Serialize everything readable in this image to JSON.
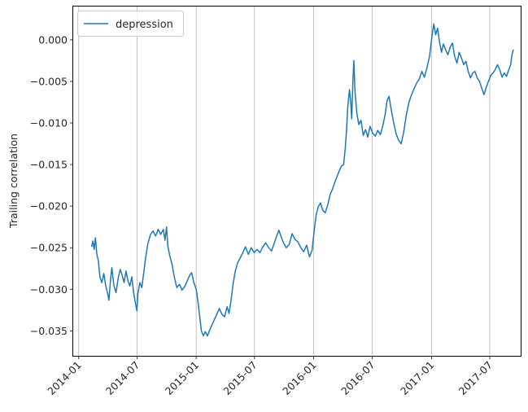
{
  "chart_data": {
    "type": "line",
    "title": "",
    "xlabel": "",
    "ylabel": "Trailing correlation",
    "x_type": "date",
    "xlim": [
      "2013-12-15",
      "2017-10-05"
    ],
    "ylim": [
      -0.038,
      0.004
    ],
    "x_ticks": [
      "2014-01-01",
      "2014-07-01",
      "2015-01-01",
      "2015-07-01",
      "2016-01-01",
      "2016-07-01",
      "2017-01-01",
      "2017-07-01"
    ],
    "x_tick_labels": [
      "2014-01",
      "2014-07",
      "2015-01",
      "2015-07",
      "2016-01",
      "2016-07",
      "2017-01",
      "2017-07"
    ],
    "y_ticks": [
      -0.035,
      -0.03,
      -0.025,
      -0.02,
      -0.015,
      -0.01,
      -0.005,
      0.0
    ],
    "y_tick_labels": [
      "−0.035",
      "−0.030",
      "−0.025",
      "−0.020",
      "−0.015",
      "−0.010",
      "−0.005",
      "0.000"
    ],
    "grid": {
      "x": true,
      "y": false
    },
    "legend_position": "top-left",
    "series": [
      {
        "name": "depression",
        "color": "#1f77b4",
        "points": [
          [
            "2014-02-10",
            -0.0249
          ],
          [
            "2014-02-14",
            -0.0242
          ],
          [
            "2014-02-18",
            -0.0252
          ],
          [
            "2014-02-22",
            -0.0238
          ],
          [
            "2014-02-26",
            -0.0257
          ],
          [
            "2014-03-03",
            -0.0266
          ],
          [
            "2014-03-08",
            -0.0285
          ],
          [
            "2014-03-14",
            -0.0292
          ],
          [
            "2014-03-20",
            -0.0281
          ],
          [
            "2014-03-26",
            -0.0296
          ],
          [
            "2014-04-01",
            -0.0305
          ],
          [
            "2014-04-05",
            -0.0313
          ],
          [
            "2014-04-10",
            -0.0288
          ],
          [
            "2014-04-14",
            -0.0274
          ],
          [
            "2014-04-20",
            -0.0295
          ],
          [
            "2014-04-27",
            -0.0304
          ],
          [
            "2014-05-04",
            -0.0286
          ],
          [
            "2014-05-10",
            -0.0276
          ],
          [
            "2014-05-16",
            -0.0283
          ],
          [
            "2014-05-22",
            -0.0292
          ],
          [
            "2014-05-28",
            -0.0278
          ],
          [
            "2014-06-03",
            -0.029
          ],
          [
            "2014-06-09",
            -0.0296
          ],
          [
            "2014-06-15",
            -0.0285
          ],
          [
            "2014-06-21",
            -0.0305
          ],
          [
            "2014-06-27",
            -0.0318
          ],
          [
            "2014-07-01",
            -0.0326
          ],
          [
            "2014-07-04",
            -0.0305
          ],
          [
            "2014-07-10",
            -0.0292
          ],
          [
            "2014-07-16",
            -0.0298
          ],
          [
            "2014-07-22",
            -0.028
          ],
          [
            "2014-07-28",
            -0.0262
          ],
          [
            "2014-08-04",
            -0.0245
          ],
          [
            "2014-08-12",
            -0.0234
          ],
          [
            "2014-08-20",
            -0.023
          ],
          [
            "2014-08-28",
            -0.0236
          ],
          [
            "2014-09-05",
            -0.0228
          ],
          [
            "2014-09-13",
            -0.0234
          ],
          [
            "2014-09-21",
            -0.0228
          ],
          [
            "2014-09-26",
            -0.0241
          ],
          [
            "2014-10-01",
            -0.0225
          ],
          [
            "2014-10-05",
            -0.0248
          ],
          [
            "2014-10-11",
            -0.026
          ],
          [
            "2014-10-18",
            -0.027
          ],
          [
            "2014-10-25",
            -0.0285
          ],
          [
            "2014-11-02",
            -0.0298
          ],
          [
            "2014-11-10",
            -0.0294
          ],
          [
            "2014-11-18",
            -0.0301
          ],
          [
            "2014-11-26",
            -0.0297
          ],
          [
            "2014-12-04",
            -0.029
          ],
          [
            "2014-12-12",
            -0.0283
          ],
          [
            "2014-12-18",
            -0.028
          ],
          [
            "2014-12-24",
            -0.0291
          ],
          [
            "2015-01-01",
            -0.03
          ],
          [
            "2015-01-07",
            -0.0316
          ],
          [
            "2015-01-12",
            -0.0333
          ],
          [
            "2015-01-17",
            -0.035
          ],
          [
            "2015-01-23",
            -0.0356
          ],
          [
            "2015-01-29",
            -0.0351
          ],
          [
            "2015-02-05",
            -0.0356
          ],
          [
            "2015-02-12",
            -0.0349
          ],
          [
            "2015-02-19",
            -0.0343
          ],
          [
            "2015-02-26",
            -0.0337
          ],
          [
            "2015-03-06",
            -0.033
          ],
          [
            "2015-03-14",
            -0.0323
          ],
          [
            "2015-03-22",
            -0.033
          ],
          [
            "2015-03-30",
            -0.0333
          ],
          [
            "2015-04-07",
            -0.0321
          ],
          [
            "2015-04-13",
            -0.0329
          ],
          [
            "2015-04-19",
            -0.0314
          ],
          [
            "2015-04-25",
            -0.0295
          ],
          [
            "2015-05-02",
            -0.0279
          ],
          [
            "2015-05-10",
            -0.0268
          ],
          [
            "2015-05-18",
            -0.0262
          ],
          [
            "2015-05-26",
            -0.0256
          ],
          [
            "2015-06-03",
            -0.0249
          ],
          [
            "2015-06-12",
            -0.0258
          ],
          [
            "2015-06-21",
            -0.025
          ],
          [
            "2015-06-30",
            -0.0256
          ],
          [
            "2015-07-09",
            -0.0252
          ],
          [
            "2015-07-18",
            -0.0256
          ],
          [
            "2015-07-27",
            -0.0249
          ],
          [
            "2015-08-05",
            -0.0244
          ],
          [
            "2015-08-14",
            -0.025
          ],
          [
            "2015-08-23",
            -0.0254
          ],
          [
            "2015-09-01",
            -0.0244
          ],
          [
            "2015-09-08",
            -0.0236
          ],
          [
            "2015-09-15",
            -0.0229
          ],
          [
            "2015-09-22",
            -0.0237
          ],
          [
            "2015-09-29",
            -0.0244
          ],
          [
            "2015-10-08",
            -0.025
          ],
          [
            "2015-10-17",
            -0.0246
          ],
          [
            "2015-10-26",
            -0.0233
          ],
          [
            "2015-11-04",
            -0.024
          ],
          [
            "2015-11-13",
            -0.0243
          ],
          [
            "2015-11-22",
            -0.025
          ],
          [
            "2015-12-01",
            -0.0255
          ],
          [
            "2015-12-10",
            -0.0247
          ],
          [
            "2015-12-19",
            -0.0261
          ],
          [
            "2015-12-27",
            -0.0253
          ],
          [
            "2016-01-03",
            -0.0228
          ],
          [
            "2016-01-09",
            -0.021
          ],
          [
            "2016-01-15",
            -0.0201
          ],
          [
            "2016-01-22",
            -0.0196
          ],
          [
            "2016-01-29",
            -0.0205
          ],
          [
            "2016-02-06",
            -0.0208
          ],
          [
            "2016-02-14",
            -0.0198
          ],
          [
            "2016-02-21",
            -0.0186
          ],
          [
            "2016-02-28",
            -0.018
          ],
          [
            "2016-03-06",
            -0.0172
          ],
          [
            "2016-03-13",
            -0.0165
          ],
          [
            "2016-03-20",
            -0.0158
          ],
          [
            "2016-03-27",
            -0.0152
          ],
          [
            "2016-04-03",
            -0.015
          ],
          [
            "2016-04-08",
            -0.013
          ],
          [
            "2016-04-12",
            -0.011
          ],
          [
            "2016-04-16",
            -0.008
          ],
          [
            "2016-04-21",
            -0.006
          ],
          [
            "2016-04-25",
            -0.0075
          ],
          [
            "2016-04-28",
            -0.0095
          ],
          [
            "2016-05-02",
            -0.0048
          ],
          [
            "2016-05-05",
            -0.0025
          ],
          [
            "2016-05-08",
            -0.006
          ],
          [
            "2016-05-14",
            -0.0088
          ],
          [
            "2016-05-20",
            -0.0102
          ],
          [
            "2016-05-27",
            -0.0097
          ],
          [
            "2016-06-03",
            -0.0115
          ],
          [
            "2016-06-10",
            -0.0108
          ],
          [
            "2016-06-17",
            -0.0117
          ],
          [
            "2016-06-24",
            -0.0104
          ],
          [
            "2016-07-02",
            -0.0112
          ],
          [
            "2016-07-10",
            -0.0116
          ],
          [
            "2016-07-18",
            -0.0109
          ],
          [
            "2016-07-26",
            -0.0114
          ],
          [
            "2016-08-03",
            -0.0103
          ],
          [
            "2016-08-10",
            -0.009
          ],
          [
            "2016-08-16",
            -0.0073
          ],
          [
            "2016-08-22",
            -0.0068
          ],
          [
            "2016-08-28",
            -0.0082
          ],
          [
            "2016-09-05",
            -0.0099
          ],
          [
            "2016-09-13",
            -0.0113
          ],
          [
            "2016-09-21",
            -0.0121
          ],
          [
            "2016-09-29",
            -0.0125
          ],
          [
            "2016-10-07",
            -0.011
          ],
          [
            "2016-10-15",
            -0.009
          ],
          [
            "2016-10-23",
            -0.0075
          ],
          [
            "2016-10-31",
            -0.0066
          ],
          [
            "2016-11-08",
            -0.0059
          ],
          [
            "2016-11-16",
            -0.0052
          ],
          [
            "2016-11-24",
            -0.0047
          ],
          [
            "2016-12-02",
            -0.0038
          ],
          [
            "2016-12-10",
            -0.0045
          ],
          [
            "2016-12-18",
            -0.0033
          ],
          [
            "2016-12-26",
            -0.002
          ],
          [
            "2017-01-02",
            0.0003
          ],
          [
            "2017-01-08",
            0.0019
          ],
          [
            "2017-01-14",
            0.0006
          ],
          [
            "2017-01-20",
            0.0014
          ],
          [
            "2017-01-26",
            -0.0003
          ],
          [
            "2017-02-01",
            -0.0015
          ],
          [
            "2017-02-07",
            -0.0005
          ],
          [
            "2017-02-14",
            -0.0012
          ],
          [
            "2017-02-21",
            -0.0018
          ],
          [
            "2017-02-28",
            -0.0009
          ],
          [
            "2017-03-07",
            -0.0004
          ],
          [
            "2017-03-14",
            -0.002
          ],
          [
            "2017-03-21",
            -0.0028
          ],
          [
            "2017-03-28",
            -0.0015
          ],
          [
            "2017-04-04",
            -0.0022
          ],
          [
            "2017-04-11",
            -0.003
          ],
          [
            "2017-04-18",
            -0.0026
          ],
          [
            "2017-04-25",
            -0.0038
          ],
          [
            "2017-05-02",
            -0.0046
          ],
          [
            "2017-05-09",
            -0.004
          ],
          [
            "2017-05-16",
            -0.0038
          ],
          [
            "2017-05-23",
            -0.0046
          ],
          [
            "2017-05-30",
            -0.005
          ],
          [
            "2017-06-06",
            -0.0058
          ],
          [
            "2017-06-13",
            -0.0066
          ],
          [
            "2017-06-20",
            -0.0057
          ],
          [
            "2017-06-27",
            -0.005
          ],
          [
            "2017-07-04",
            -0.0043
          ],
          [
            "2017-07-11",
            -0.004
          ],
          [
            "2017-07-18",
            -0.0036
          ],
          [
            "2017-07-25",
            -0.003
          ],
          [
            "2017-08-01",
            -0.0036
          ],
          [
            "2017-08-08",
            -0.0045
          ],
          [
            "2017-08-15",
            -0.004
          ],
          [
            "2017-08-22",
            -0.0044
          ],
          [
            "2017-08-29",
            -0.0036
          ],
          [
            "2017-09-04",
            -0.003
          ],
          [
            "2017-09-08",
            -0.0018
          ],
          [
            "2017-09-12",
            -0.0012
          ]
        ]
      }
    ]
  }
}
